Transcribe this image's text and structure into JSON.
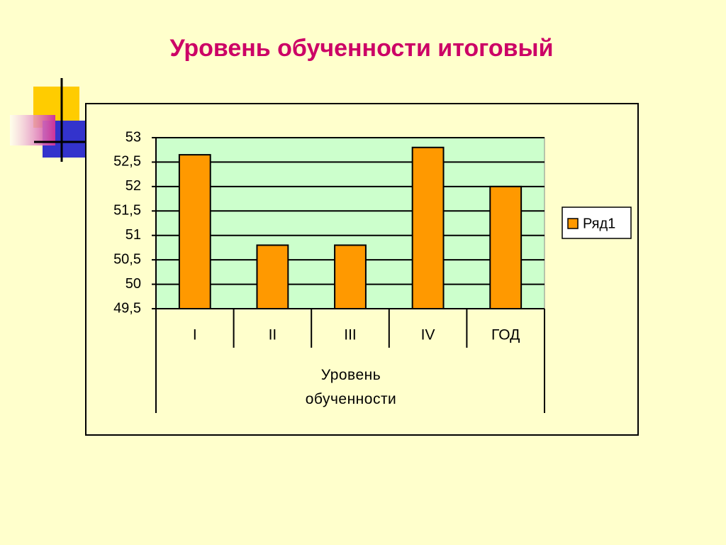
{
  "chart_data": {
    "type": "bar",
    "title": "Уровень обученности итоговый",
    "categories": [
      "I",
      "II",
      "III",
      "IV",
      "ГОД"
    ],
    "x_label": "Уровень обученности",
    "series": [
      {
        "name": "Ряд1",
        "color": "#ff9900",
        "values": [
          52.65,
          50.8,
          50.8,
          52.8,
          52.0
        ]
      }
    ],
    "ylim": [
      49.5,
      53
    ],
    "yticks": [
      {
        "value": 49.5,
        "label": "49,5"
      },
      50,
      {
        "value": 50.5,
        "label": "50,5"
      },
      51,
      {
        "value": 51.5,
        "label": "51,5"
      },
      52,
      {
        "value": 52.5,
        "label": "52,5"
      },
      53
    ],
    "grid": true,
    "plot_background": "#ccffcc",
    "legend": "right"
  }
}
